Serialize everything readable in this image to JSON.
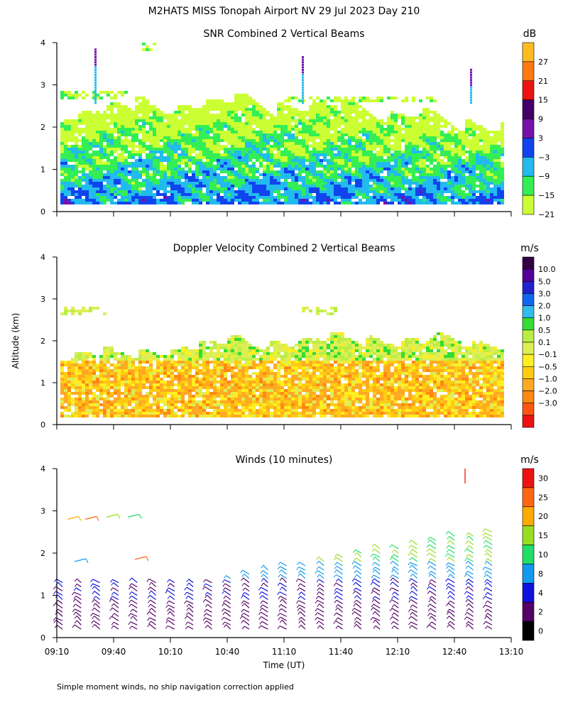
{
  "header": {
    "title": "M2HATS MISS Tonopah Airport NV  29 Jul 2023 Day 210"
  },
  "footer": {
    "note": "Simple moment winds, no ship navigation correction applied"
  },
  "colors": {
    "snr_scale": [
      "#ccff33",
      "#33ee55",
      "#22bbee",
      "#1144ee",
      "#7711aa",
      "#440066",
      "#ee1111",
      "#ff7711",
      "#ffbb22"
    ],
    "velocity_scale": [
      "#ee1111",
      "#ff5511",
      "#ff8811",
      "#ffaa22",
      "#ffcc11",
      "#ffee22",
      "#ddee55",
      "#bbee44",
      "#33dd33",
      "#33bbee",
      "#1166ee",
      "#2222cc",
      "#550099",
      "#330044"
    ],
    "wind_scale": [
      "#000000",
      "#550066",
      "#1111dd",
      "#1199ee",
      "#22dd66",
      "#99dd22",
      "#ffaa00",
      "#ff6611",
      "#ee1111"
    ]
  },
  "chart_data": [
    {
      "type": "heatmap",
      "title": "SNR Combined 2 Vertical Beams",
      "xlabel": "",
      "ylabel": "Altitude (km)",
      "x_range_minutes": [
        0,
        240
      ],
      "ylim": [
        0,
        4
      ],
      "y_ticks": [
        "0",
        "1",
        "2",
        "3",
        "4"
      ],
      "colorbar_unit": "dB",
      "colorbar_labels": [
        "27",
        "21",
        "15",
        "9",
        "3",
        "−3",
        "−9",
        "−15",
        "−21"
      ],
      "colorbar_bins": [
        -21,
        -15,
        -9,
        -3,
        3,
        9,
        15,
        21,
        27,
        33
      ],
      "grid": false
    },
    {
      "type": "heatmap",
      "title": "Doppler Velocity Combined 2 Vertical Beams",
      "xlabel": "",
      "ylabel": "Altitude (km)",
      "x_range_minutes": [
        0,
        240
      ],
      "ylim": [
        0,
        4
      ],
      "y_ticks": [
        "0",
        "1",
        "2",
        "3",
        "4"
      ],
      "colorbar_unit": "m/s",
      "colorbar_labels": [
        "10.0",
        "5.0",
        "3.0",
        "2.0",
        "1.0",
        "0.5",
        "0.1",
        "−0.1",
        "−0.5",
        "−1.0",
        "−2.0",
        "−3.0"
      ],
      "colorbar_bins": [
        -3.0,
        -2.0,
        -1.0,
        -0.5,
        -0.1,
        0.1,
        0.5,
        1.0,
        2.0,
        3.0,
        5.0,
        10.0
      ],
      "grid": false
    },
    {
      "type": "scatter",
      "title": "Winds (10 minutes)",
      "xlabel": "Time (UT)",
      "ylabel": "Altitude (km)",
      "x_ticks": [
        "09:10",
        "09:40",
        "10:10",
        "10:40",
        "11:10",
        "11:40",
        "12:10",
        "12:40",
        "13:10"
      ],
      "x_range_minutes": [
        0,
        240
      ],
      "ylim": [
        0,
        4
      ],
      "y_ticks": [
        "0",
        "1",
        "2",
        "3",
        "4"
      ],
      "colorbar_unit": "m/s",
      "colorbar_labels": [
        "30",
        "25",
        "20",
        "15",
        "10",
        "8",
        "4",
        "2",
        "0"
      ],
      "colorbar_bins": [
        0,
        2,
        4,
        8,
        10,
        15,
        20,
        25,
        30,
        35
      ],
      "grid": false
    }
  ]
}
